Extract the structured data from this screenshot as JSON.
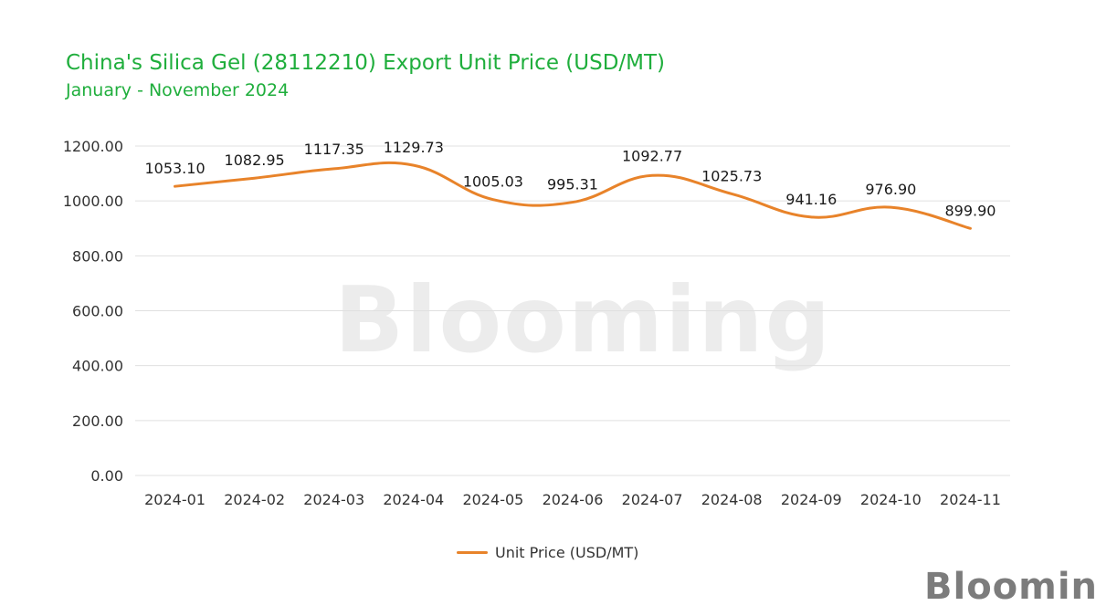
{
  "chart_data": {
    "type": "line",
    "title": "China's Silica Gel (28112210) Export Unit Price (USD/MT)",
    "subtitle": "January - November 2024",
    "xlabel": "",
    "ylabel": "",
    "categories": [
      "2024-01",
      "2024-02",
      "2024-03",
      "2024-04",
      "2024-05",
      "2024-06",
      "2024-07",
      "2024-08",
      "2024-09",
      "2024-10",
      "2024-11"
    ],
    "series": [
      {
        "name": "Unit Price (USD/MT)",
        "values": [
          1053.1,
          1082.95,
          1117.35,
          1129.73,
          1005.03,
          995.31,
          1092.77,
          1025.73,
          941.16,
          976.9,
          899.9
        ],
        "labels": [
          "1053.10",
          "1082.95",
          "1117.35",
          "1129.73",
          "1005.03",
          "995.31",
          "1092.77",
          "1025.73",
          "941.16",
          "976.90",
          "899.90"
        ],
        "color": "#e8832a"
      }
    ],
    "ylim": [
      0,
      1200
    ],
    "yticks": [
      "0.00",
      "200.00",
      "400.00",
      "600.00",
      "800.00",
      "1000.00",
      "1200.00"
    ],
    "grid": true,
    "legend_position": "bottom-center"
  },
  "watermark": "Blooming",
  "brand": {
    "logo_text": "Blooming",
    "accent_color": "#3fbf4a"
  },
  "colors": {
    "title": "#1fae3c",
    "grid": "#e0e0e0",
    "line": "#e8832a"
  }
}
